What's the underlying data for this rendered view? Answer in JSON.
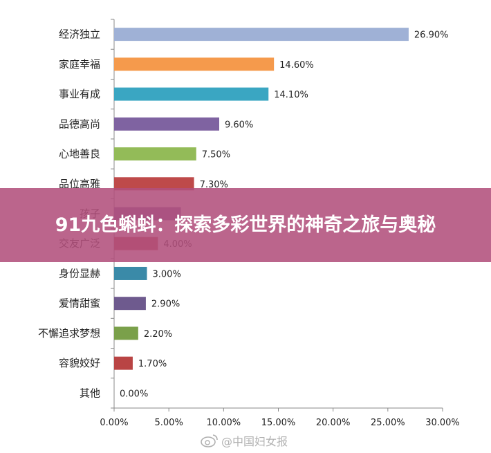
{
  "chart_data": {
    "type": "bar",
    "orientation": "horizontal",
    "categories": [
      "经济独立",
      "家庭幸福",
      "事业有成",
      "品德高尚",
      "心地善良",
      "品位高雅",
      "孩子",
      "交友广泛",
      "身份显赫",
      "爱情甜蜜",
      "不懈追求梦想",
      "容貌姣好",
      "其他"
    ],
    "values": [
      26.9,
      14.6,
      14.1,
      9.6,
      7.5,
      7.3,
      6.1,
      4.0,
      3.0,
      2.9,
      2.2,
      1.7,
      0.0
    ],
    "value_labels": [
      "26.90%",
      "14.60%",
      "14.10%",
      "9.60%",
      "7.50%",
      "7.30%",
      "",
      "4.00%",
      "3.00%",
      "2.90%",
      "2.20%",
      "1.70%",
      "0.00%"
    ],
    "colors": [
      "#9fb1d6",
      "#f59a4c",
      "#3aa6c2",
      "#7f63a1",
      "#93bb58",
      "#be4a4a",
      "#7f63a1",
      "#be4a4a",
      "#3a8aa8",
      "#6e5a8e",
      "#7aa04a",
      "#b94444",
      "#999999"
    ],
    "xlim": [
      0,
      30
    ],
    "x_ticks": [
      "0.00%",
      "5.00%",
      "10.00%",
      "15.00%",
      "20.00%",
      "25.00%",
      "30.00%"
    ],
    "grid": false,
    "legend": "none"
  },
  "overlay": {
    "title": "91九色蝌蚪：探索多彩世界的神奇之旅与奥秘"
  },
  "watermark": {
    "text": "@中国妇女报"
  }
}
